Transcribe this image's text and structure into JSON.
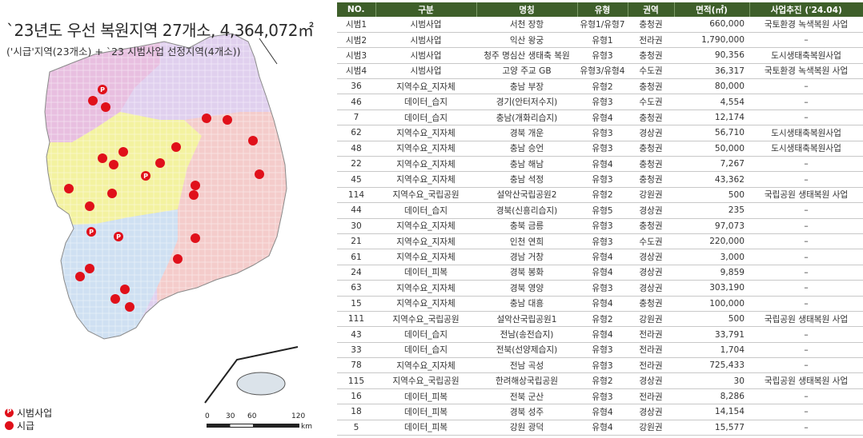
{
  "map": {
    "title": "`23년도 우선 복원지역 27개소, 4,364,072㎡",
    "subtitle": "('시급'지역(23개소) + `23 시범사업 선정지역(4개소))",
    "legend": {
      "pilot_label": "시범사업",
      "urgent_label": "시급"
    },
    "scale": {
      "ticks": [
        "0",
        "30",
        "60",
        "120"
      ],
      "unit": "km"
    },
    "region_colors": {
      "sudogwon": "#e8bfe0",
      "gangwon": "#e0d0ee",
      "chungcheong": "#f3f2a0",
      "jeolla": "#cfe0f2",
      "gyeongsang": "#f4cccb"
    },
    "marker_color": "#e0101a"
  },
  "table": {
    "headers": [
      "NO.",
      "구분",
      "명칭",
      "유형",
      "권역",
      "면적(㎡)",
      "사업추진 ('24.04)"
    ],
    "rows": [
      [
        "시범1",
        "시범사업",
        "서천 장항",
        "유형1/유형7",
        "충청권",
        "660,000",
        "국토환경 녹색복원 사업"
      ],
      [
        "시범2",
        "시범사업",
        "익산 왕궁",
        "유형1",
        "전라권",
        "1,790,000",
        "–"
      ],
      [
        "시범3",
        "시범사업",
        "청주 명심산 생태축 복원",
        "유형3",
        "충청권",
        "90,356",
        "도시생태축복원사업"
      ],
      [
        "시범4",
        "시범사업",
        "고양 주교 GB",
        "유형3/유형4",
        "수도권",
        "36,317",
        "국토환경 녹색복원 사업"
      ],
      [
        "36",
        "지역수요_지자체",
        "충남 부장",
        "유형2",
        "충청권",
        "80,000",
        "–"
      ],
      [
        "46",
        "데이터_습지",
        "경기(안터저수지)",
        "유형3",
        "수도권",
        "4,554",
        "–"
      ],
      [
        "7",
        "데이터_습지",
        "충남(개화리습지)",
        "유형4",
        "충청권",
        "12,174",
        "–"
      ],
      [
        "62",
        "지역수요_지자체",
        "경북 개운",
        "유형3",
        "경상권",
        "56,710",
        "도시생태축복원사업"
      ],
      [
        "48",
        "지역수요_지자체",
        "충남 승언",
        "유형3",
        "충청권",
        "50,000",
        "도시생태축복원사업"
      ],
      [
        "22",
        "지역수요_지자체",
        "충남 해남",
        "유형4",
        "충청권",
        "7,267",
        "–"
      ],
      [
        "45",
        "지역수요_지자체",
        "충남 석정",
        "유형3",
        "충청권",
        "43,362",
        "–"
      ],
      [
        "114",
        "지역수요_국립공원",
        "설악산국립공원2",
        "유형2",
        "강원권",
        "500",
        "국립공원 생태복원 사업"
      ],
      [
        "44",
        "데이터_습지",
        "경북(신흥리습지)",
        "유형5",
        "경상권",
        "235",
        "–"
      ],
      [
        "30",
        "지역수요_지자체",
        "충북 금릉",
        "유형3",
        "충청권",
        "97,073",
        "–"
      ],
      [
        "21",
        "지역수요_지자체",
        "인천 연희",
        "유형3",
        "수도권",
        "220,000",
        "–"
      ],
      [
        "61",
        "지역수요_지자체",
        "경남 거창",
        "유형4",
        "경상권",
        "3,000",
        "–"
      ],
      [
        "24",
        "데이터_피복",
        "경북 봉화",
        "유형4",
        "경상권",
        "9,859",
        "–"
      ],
      [
        "63",
        "지역수요_지자체",
        "경북 영양",
        "유형3",
        "경상권",
        "303,190",
        "–"
      ],
      [
        "15",
        "지역수요_지자체",
        "충남 대흥",
        "유형4",
        "충청권",
        "100,000",
        "–"
      ],
      [
        "111",
        "지역수요_국립공원",
        "설악산국립공원1",
        "유형2",
        "강원권",
        "500",
        "국립공원 생태복원 사업"
      ],
      [
        "43",
        "데이터_습지",
        "전남(송전습지)",
        "유형4",
        "전라권",
        "33,791",
        "–"
      ],
      [
        "33",
        "데이터_습지",
        "전북(선양제습지)",
        "유형3",
        "전라권",
        "1,704",
        "–"
      ],
      [
        "78",
        "지역수요_지자체",
        "전남 곡성",
        "유형3",
        "전라권",
        "725,433",
        "–"
      ],
      [
        "115",
        "지역수요_국립공원",
        "한려해상국립공원",
        "유형2",
        "경상권",
        "30",
        "국립공원 생태복원 사업"
      ],
      [
        "16",
        "데이터_피복",
        "전북 군산",
        "유형3",
        "전라권",
        "8,286",
        "–"
      ],
      [
        "18",
        "데이터_피복",
        "경북 성주",
        "유형4",
        "경상권",
        "14,154",
        "–"
      ],
      [
        "5",
        "데이터_피복",
        "강원 광덕",
        "유형4",
        "강원권",
        "15,577",
        "–"
      ]
    ]
  }
}
